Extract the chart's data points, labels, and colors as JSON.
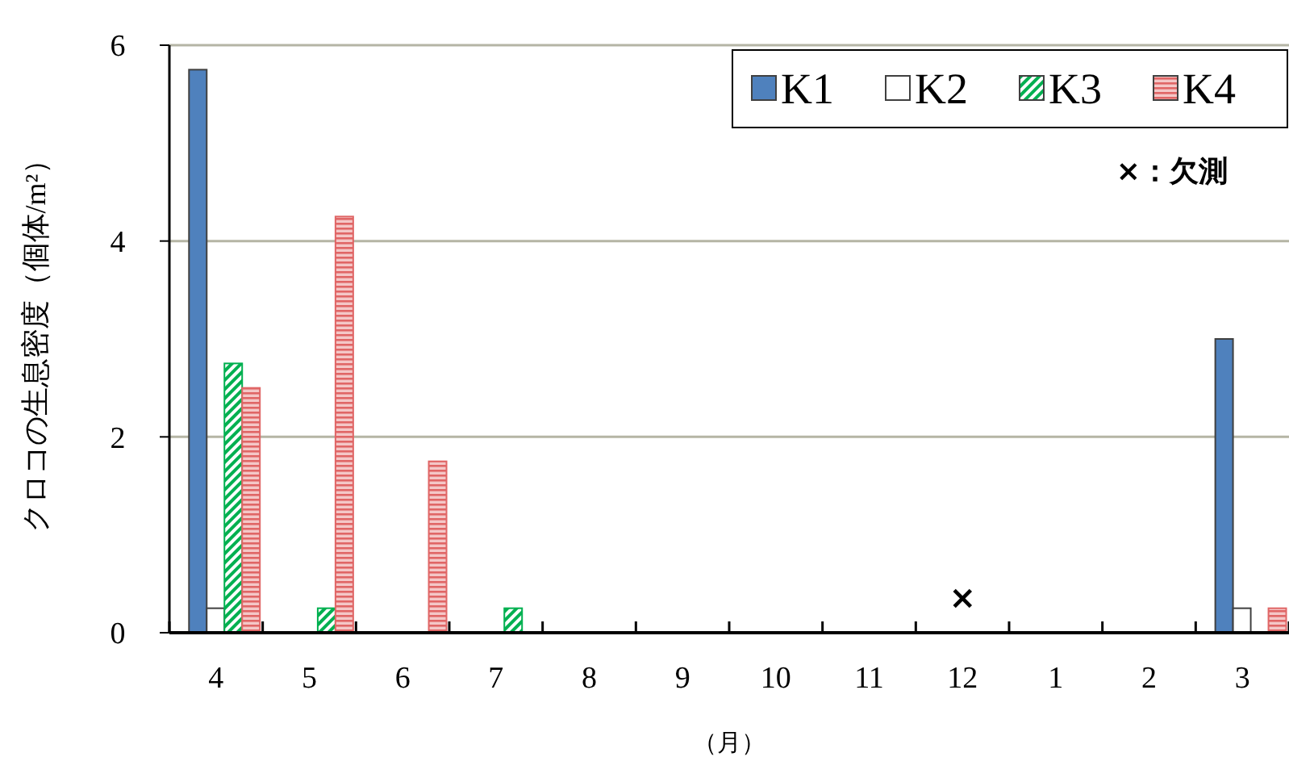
{
  "chart_data": {
    "type": "bar",
    "xlabel": "（月）",
    "ylabel": "クロコの生息密度（個体/m²）",
    "categories": [
      "4",
      "5",
      "6",
      "7",
      "8",
      "9",
      "10",
      "11",
      "12",
      "1",
      "2",
      "3"
    ],
    "series": [
      {
        "name": "K1",
        "color": "#4f81bd",
        "values": [
          5.75,
          0,
          0,
          0,
          0,
          0,
          0,
          0,
          null,
          0,
          0,
          3
        ]
      },
      {
        "name": "K2",
        "color": "#ffffff",
        "values": [
          0.25,
          0,
          0,
          0,
          0,
          0,
          0,
          0,
          null,
          0,
          0,
          0.25
        ]
      },
      {
        "name": "K3",
        "color": "#00b050",
        "values": [
          2.75,
          0.25,
          0,
          0.25,
          0,
          0,
          0,
          0,
          null,
          0,
          0,
          0
        ]
      },
      {
        "name": "K4",
        "color": "#e06666",
        "values": [
          2.5,
          4.25,
          1.75,
          0,
          0,
          0,
          0,
          0,
          null,
          0,
          0,
          0.25
        ]
      }
    ],
    "ylim": [
      0,
      6
    ],
    "yticks": [
      0,
      2,
      4,
      6
    ],
    "grid": "y",
    "legend": "top right",
    "annotations": [
      "×",
      "×：欠測"
    ]
  }
}
